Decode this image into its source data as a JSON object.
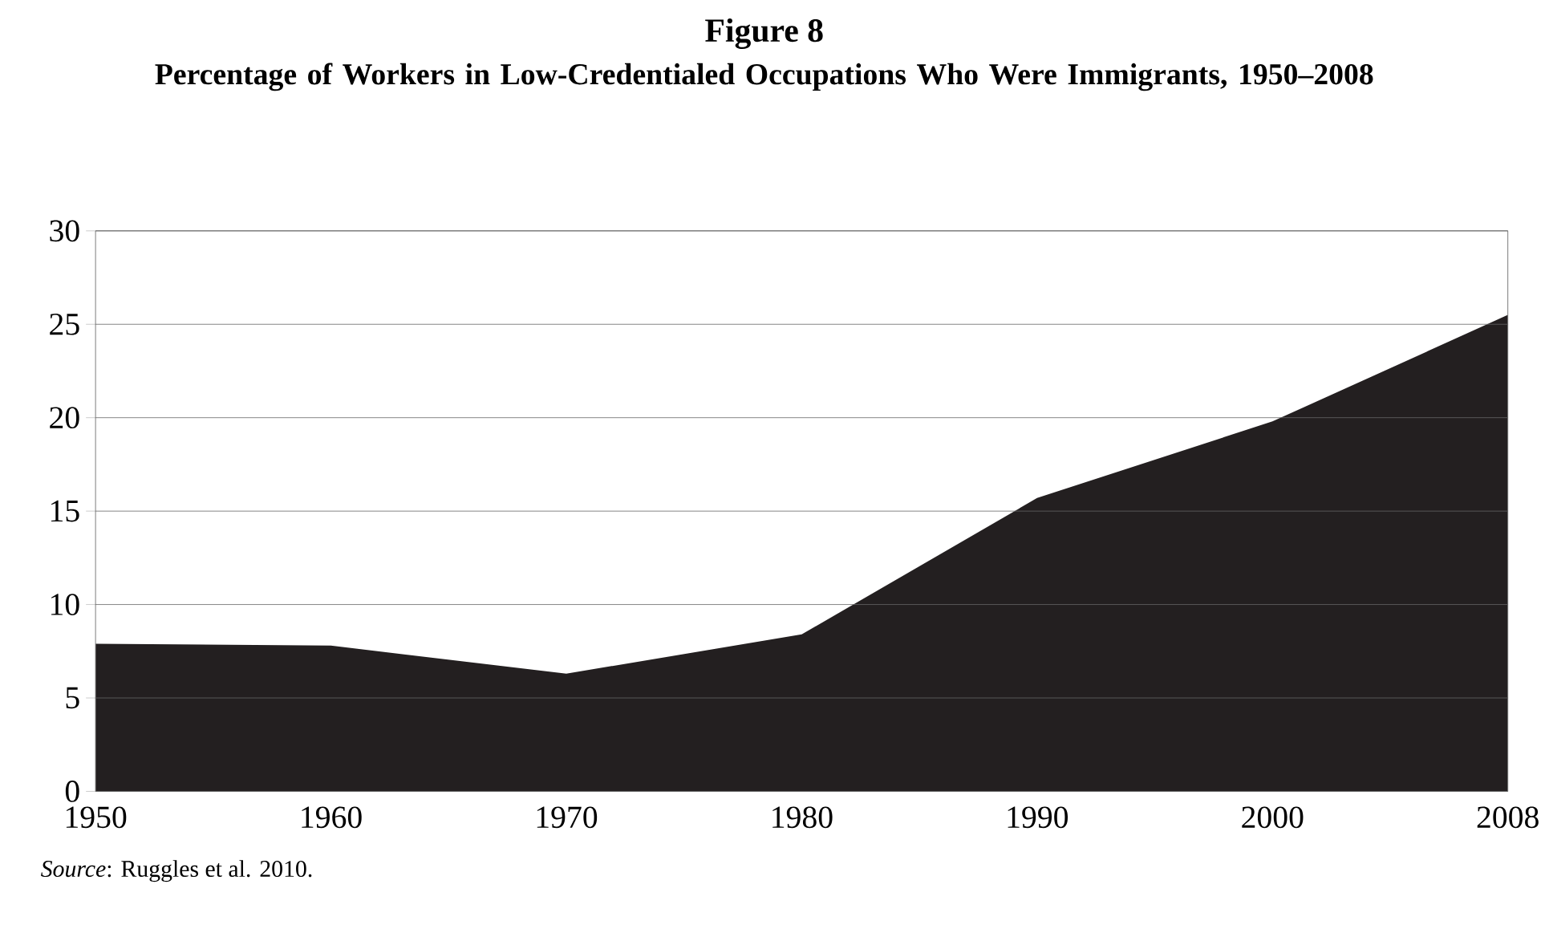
{
  "chart_data": {
    "type": "area",
    "title": "Figure 8",
    "subtitle": "Percentage of Workers in Low-Credentialed Occupations Who Were Immigrants, 1950–2008",
    "categories": [
      "1950",
      "1960",
      "1970",
      "1980",
      "1990",
      "2000",
      "2008"
    ],
    "values": [
      7.9,
      7.8,
      6.3,
      8.4,
      15.7,
      19.8,
      25.5
    ],
    "color": "#231f20",
    "ylim": [
      0,
      30
    ],
    "yticks": [
      0,
      5,
      10,
      15,
      20,
      25,
      30
    ],
    "grid": "y",
    "annotations": [
      "*Source*: Ruggles et al. 2010."
    ]
  }
}
